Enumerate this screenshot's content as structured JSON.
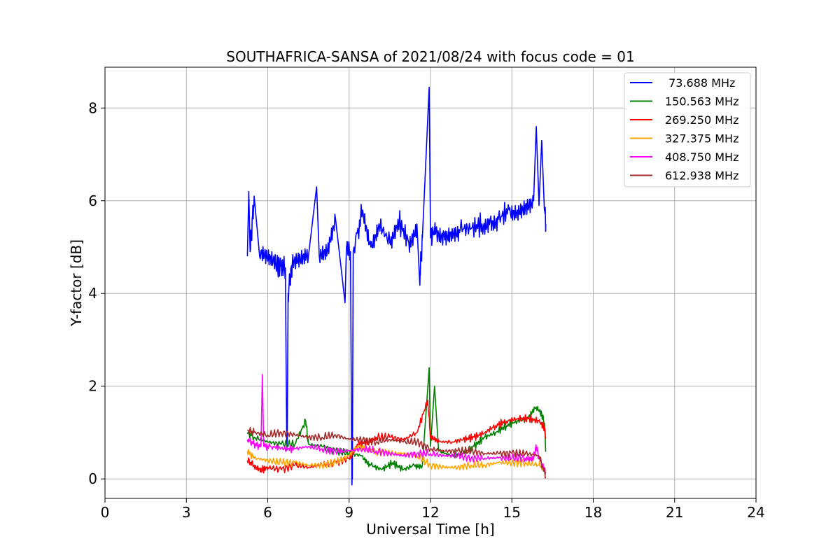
{
  "chart_data": {
    "type": "line",
    "title": "SOUTHAFRICA-SANSA of 2021/08/24 with focus code = 01",
    "xlabel": "Universal Time [h]",
    "ylabel": "Y-factor [dB]",
    "xlim": [
      0,
      24
    ],
    "ylim": [
      -0.42,
      8.88
    ],
    "xticks": [
      0,
      3,
      6,
      9,
      12,
      15,
      18,
      21,
      24
    ],
    "yticks": [
      0,
      2,
      4,
      6,
      8
    ],
    "grid": true,
    "legend_position": "top-right",
    "series": [
      {
        "name": " 73.688 MHz",
        "color": "#0000ff",
        "points": [
          [
            5.25,
            4.8
          ],
          [
            5.3,
            6.2
          ],
          [
            5.35,
            4.9
          ],
          [
            5.5,
            6.1
          ],
          [
            5.7,
            4.8
          ],
          [
            6.0,
            4.7
          ],
          [
            6.3,
            4.6
          ],
          [
            6.5,
            4.6
          ],
          [
            6.65,
            4.55
          ],
          [
            6.7,
            0.85
          ],
          [
            6.72,
            0.85
          ],
          [
            6.75,
            4.0
          ],
          [
            6.9,
            4.6
          ],
          [
            7.2,
            4.7
          ],
          [
            7.5,
            4.8
          ],
          [
            7.8,
            6.3
          ],
          [
            7.9,
            4.8
          ],
          [
            8.2,
            4.9
          ],
          [
            8.5,
            5.6
          ],
          [
            8.85,
            3.8
          ],
          [
            8.9,
            5.0
          ],
          [
            9.05,
            4.9
          ],
          [
            9.1,
            0.0
          ],
          [
            9.12,
            0.0
          ],
          [
            9.15,
            4.9
          ],
          [
            9.5,
            5.8
          ],
          [
            9.8,
            5.0
          ],
          [
            10.1,
            5.5
          ],
          [
            10.5,
            5.1
          ],
          [
            10.8,
            5.6
          ],
          [
            11.2,
            5.1
          ],
          [
            11.5,
            5.5
          ],
          [
            11.6,
            4.25
          ],
          [
            11.7,
            5.2
          ],
          [
            11.95,
            8.45
          ],
          [
            12.0,
            5.2
          ],
          [
            12.2,
            5.4
          ],
          [
            12.5,
            5.3
          ],
          [
            12.8,
            5.4
          ],
          [
            13.1,
            5.4
          ],
          [
            13.5,
            5.4
          ],
          [
            13.9,
            5.5
          ],
          [
            14.2,
            5.6
          ],
          [
            14.5,
            5.6
          ],
          [
            14.9,
            5.8
          ],
          [
            15.2,
            5.8
          ],
          [
            15.5,
            5.9
          ],
          [
            15.8,
            6.0
          ],
          [
            15.9,
            7.6
          ],
          [
            16.0,
            5.9
          ],
          [
            16.1,
            7.3
          ],
          [
            16.2,
            5.8
          ],
          [
            16.25,
            5.5
          ]
        ]
      },
      {
        "name": "150.563 MHz",
        "color": "#008000",
        "points": [
          [
            5.25,
            1.0
          ],
          [
            5.5,
            0.9
          ],
          [
            6.0,
            0.8
          ],
          [
            6.5,
            0.75
          ],
          [
            7.0,
            0.75
          ],
          [
            7.4,
            1.25
          ],
          [
            7.5,
            0.75
          ],
          [
            8.0,
            0.7
          ],
          [
            8.5,
            0.6
          ],
          [
            9.0,
            0.55
          ],
          [
            9.5,
            0.5
          ],
          [
            9.8,
            0.3
          ],
          [
            10.2,
            0.2
          ],
          [
            10.6,
            0.35
          ],
          [
            11.0,
            0.2
          ],
          [
            11.4,
            0.3
          ],
          [
            11.7,
            0.3
          ],
          [
            11.95,
            2.4
          ],
          [
            12.0,
            0.7
          ],
          [
            12.15,
            2.0
          ],
          [
            12.3,
            0.6
          ],
          [
            12.8,
            0.5
          ],
          [
            13.2,
            0.55
          ],
          [
            13.6,
            0.7
          ],
          [
            14.0,
            0.9
          ],
          [
            14.4,
            1.0
          ],
          [
            14.8,
            1.15
          ],
          [
            15.2,
            1.25
          ],
          [
            15.6,
            1.3
          ],
          [
            15.9,
            1.55
          ],
          [
            16.1,
            1.4
          ],
          [
            16.2,
            1.2
          ],
          [
            16.25,
            0.6
          ]
        ]
      },
      {
        "name": "269.250 MHz",
        "color": "#ff0000",
        "points": [
          [
            5.25,
            0.4
          ],
          [
            5.5,
            0.3
          ],
          [
            5.8,
            0.2
          ],
          [
            6.0,
            0.25
          ],
          [
            6.5,
            0.2
          ],
          [
            7.0,
            0.3
          ],
          [
            7.5,
            0.25
          ],
          [
            8.0,
            0.3
          ],
          [
            8.5,
            0.35
          ],
          [
            9.0,
            0.45
          ],
          [
            9.3,
            0.75
          ],
          [
            9.7,
            0.8
          ],
          [
            10.0,
            0.9
          ],
          [
            10.5,
            0.9
          ],
          [
            11.0,
            0.85
          ],
          [
            11.5,
            1.0
          ],
          [
            11.9,
            1.7
          ],
          [
            12.0,
            0.9
          ],
          [
            12.3,
            0.8
          ],
          [
            12.8,
            0.8
          ],
          [
            13.2,
            0.85
          ],
          [
            13.6,
            0.9
          ],
          [
            14.0,
            1.0
          ],
          [
            14.4,
            1.15
          ],
          [
            14.8,
            1.25
          ],
          [
            15.2,
            1.3
          ],
          [
            15.6,
            1.3
          ],
          [
            16.0,
            1.25
          ],
          [
            16.2,
            1.1
          ],
          [
            16.25,
            0.9
          ]
        ]
      },
      {
        "name": "327.375 MHz",
        "color": "#ffa500",
        "points": [
          [
            5.25,
            0.6
          ],
          [
            5.5,
            0.45
          ],
          [
            6.0,
            0.4
          ],
          [
            6.5,
            0.35
          ],
          [
            7.0,
            0.35
          ],
          [
            7.5,
            0.3
          ],
          [
            8.0,
            0.3
          ],
          [
            8.5,
            0.35
          ],
          [
            9.0,
            0.5
          ],
          [
            9.3,
            0.7
          ],
          [
            9.6,
            0.65
          ],
          [
            10.0,
            0.6
          ],
          [
            10.5,
            0.55
          ],
          [
            11.0,
            0.55
          ],
          [
            11.5,
            0.5
          ],
          [
            12.0,
            0.3
          ],
          [
            12.5,
            0.25
          ],
          [
            13.0,
            0.25
          ],
          [
            13.5,
            0.3
          ],
          [
            14.0,
            0.3
          ],
          [
            14.5,
            0.35
          ],
          [
            15.0,
            0.35
          ],
          [
            15.5,
            0.35
          ],
          [
            16.0,
            0.3
          ],
          [
            16.25,
            0.2
          ]
        ]
      },
      {
        "name": "408.750 MHz",
        "color": "#ff00ff",
        "points": [
          [
            5.25,
            0.85
          ],
          [
            5.5,
            0.75
          ],
          [
            5.75,
            0.7
          ],
          [
            5.8,
            2.25
          ],
          [
            5.85,
            0.7
          ],
          [
            6.2,
            0.7
          ],
          [
            6.6,
            0.65
          ],
          [
            7.0,
            0.65
          ],
          [
            7.5,
            0.7
          ],
          [
            8.0,
            0.65
          ],
          [
            8.5,
            0.6
          ],
          [
            9.0,
            0.6
          ],
          [
            9.5,
            0.65
          ],
          [
            10.0,
            0.6
          ],
          [
            10.5,
            0.55
          ],
          [
            11.0,
            0.5
          ],
          [
            11.5,
            0.55
          ],
          [
            12.0,
            0.55
          ],
          [
            12.5,
            0.5
          ],
          [
            13.0,
            0.5
          ],
          [
            13.5,
            0.45
          ],
          [
            14.0,
            0.45
          ],
          [
            14.5,
            0.45
          ],
          [
            15.0,
            0.45
          ],
          [
            15.5,
            0.45
          ],
          [
            15.8,
            0.45
          ],
          [
            15.9,
            0.7
          ],
          [
            16.0,
            0.45
          ],
          [
            16.25,
            0.15
          ]
        ]
      },
      {
        "name": "612.938 MHz",
        "color": "#a52a2a",
        "points": [
          [
            5.25,
            1.05
          ],
          [
            5.5,
            1.0
          ],
          [
            6.0,
            0.95
          ],
          [
            6.5,
            1.0
          ],
          [
            7.0,
            0.95
          ],
          [
            7.5,
            0.9
          ],
          [
            8.0,
            0.9
          ],
          [
            8.5,
            0.95
          ],
          [
            9.0,
            0.85
          ],
          [
            9.5,
            0.85
          ],
          [
            10.0,
            0.8
          ],
          [
            10.5,
            0.85
          ],
          [
            11.0,
            0.8
          ],
          [
            11.5,
            0.8
          ],
          [
            12.0,
            0.65
          ],
          [
            12.5,
            0.6
          ],
          [
            13.0,
            0.6
          ],
          [
            13.5,
            0.6
          ],
          [
            14.0,
            0.55
          ],
          [
            14.5,
            0.55
          ],
          [
            15.0,
            0.55
          ],
          [
            15.5,
            0.55
          ],
          [
            16.0,
            0.5
          ],
          [
            16.25,
            0.05
          ]
        ]
      }
    ]
  }
}
